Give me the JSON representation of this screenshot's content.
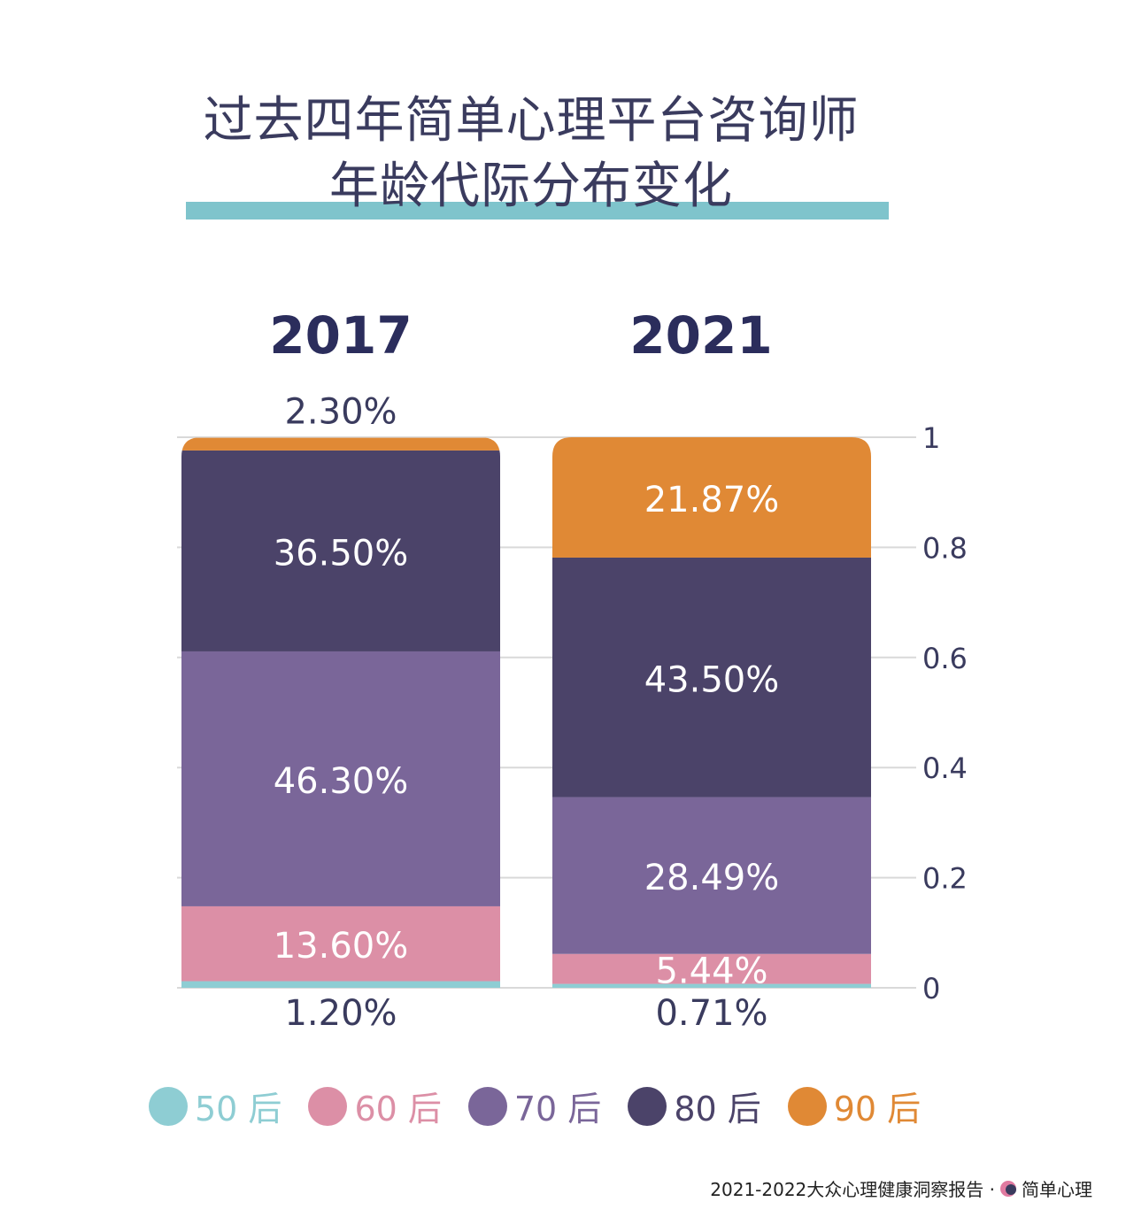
{
  "title": {
    "line1": "过去四年简单心理平台咨询师",
    "line2": "年龄代际分布变化"
  },
  "chart_data": {
    "type": "bar",
    "stacked": true,
    "categories": [
      "2017",
      "2021"
    ],
    "series": [
      {
        "name": "50 后",
        "color": "#8ecdd3",
        "values": [
          0.012,
          0.0071
        ],
        "labels": [
          "1.20%",
          "0.71%"
        ]
      },
      {
        "name": "60 后",
        "color": "#dc8fa6",
        "values": [
          0.136,
          0.0544
        ],
        "labels": [
          "13.60%",
          "5.44%"
        ]
      },
      {
        "name": "70 后",
        "color": "#7a6699",
        "values": [
          0.463,
          0.2849
        ],
        "labels": [
          "46.30%",
          "28.49%"
        ]
      },
      {
        "name": "80 后",
        "color": "#4b4369",
        "values": [
          0.365,
          0.435
        ],
        "labels": [
          "36.50%",
          "43.50%"
        ]
      },
      {
        "name": "90 后",
        "color": "#e08935",
        "values": [
          0.023,
          0.2187
        ],
        "labels": [
          "2.30%",
          "21.87%"
        ]
      }
    ],
    "y_ticks": [
      "0",
      "0.2",
      "0.4",
      "0.6",
      "0.8",
      "1"
    ],
    "ylim": [
      0,
      1
    ],
    "grid": true,
    "legend_position": "bottom"
  },
  "footer": {
    "text": "2021-2022大众心理健康洞察报告 ·",
    "brand": "简单心理"
  }
}
